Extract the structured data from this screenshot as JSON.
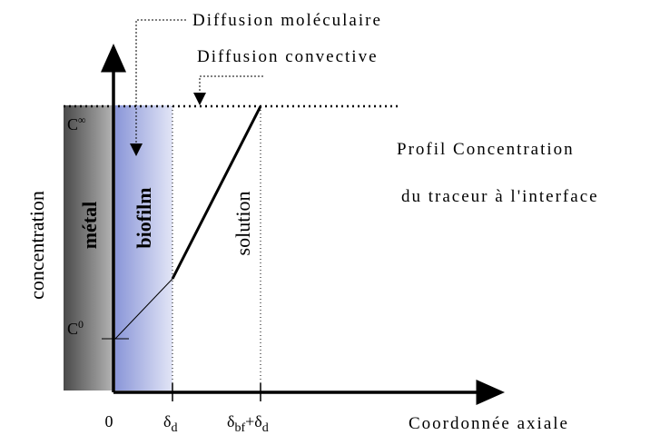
{
  "annotations": {
    "molecular": "Diffusion moléculaire",
    "convective": "Diffusion convective"
  },
  "profile_title": {
    "line1": "Profil Concentration",
    "line2": "du traceur à l'interface"
  },
  "y_axis_label": "concentration",
  "x_axis_label": "Coordonnée axiale",
  "regions": {
    "metal": "métal",
    "biofilm": "biofilm",
    "solution": "solution"
  },
  "y_labels": {
    "c_inf": {
      "base": "C",
      "sup": "∞"
    },
    "c_0": {
      "base": "C",
      "sup": "0"
    }
  },
  "x_labels": {
    "origin": "0",
    "delta_d": {
      "base": "δ",
      "sub": "d"
    },
    "delta_bf_d": {
      "base1": "δ",
      "sub1": "bf",
      "base2": "+δ",
      "sub2": "d"
    }
  }
}
